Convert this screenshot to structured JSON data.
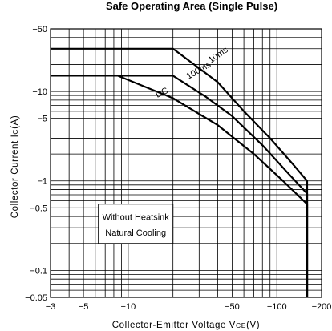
{
  "chart_data": {
    "type": "line",
    "title": "Safe Operating Area (Single Pulse)",
    "xlabel": "Collector-Emitter Voltage V",
    "xlabel_sub": "CE",
    "xlabel_unit": "(V)",
    "ylabel": "Collector Current I",
    "ylabel_sub": "C",
    "ylabel_unit": "(A)",
    "x_scale": "log",
    "y_scale": "log",
    "x_magnitude_range": [
      3,
      200
    ],
    "y_magnitude_range": [
      0.05,
      50
    ],
    "grid": true,
    "x_ticks": [
      {
        "value": 3,
        "label": "−3"
      },
      {
        "value": 5,
        "label": "−5"
      },
      {
        "value": 10,
        "label": "−10"
      },
      {
        "value": 50,
        "label": "−50"
      },
      {
        "value": 100,
        "label": "−100"
      },
      {
        "value": 200,
        "label": "−200"
      }
    ],
    "y_ticks": [
      {
        "value": 50,
        "label": "−50"
      },
      {
        "value": 10,
        "label": "−10"
      },
      {
        "value": 5,
        "label": "−5"
      },
      {
        "value": 1,
        "label": "−1"
      },
      {
        "value": 0.5,
        "label": "−0.5"
      },
      {
        "value": 0.1,
        "label": "−0.1"
      },
      {
        "value": 0.05,
        "label": "−0.05"
      }
    ],
    "series": [
      {
        "name": "10ms",
        "points": [
          [
            3,
            30
          ],
          [
            20,
            30
          ],
          [
            40,
            12.7
          ],
          [
            60,
            6
          ],
          [
            90,
            3
          ],
          [
            130,
            1.5
          ],
          [
            160,
            1.0
          ],
          [
            160,
            0.05
          ]
        ]
      },
      {
        "name": "100ms",
        "points": [
          [
            3,
            15
          ],
          [
            20,
            15
          ],
          [
            33,
            8.8
          ],
          [
            50,
            5.3
          ],
          [
            80,
            2.5
          ],
          [
            120,
            1.2
          ],
          [
            160,
            0.72
          ],
          [
            160,
            0.05
          ]
        ]
      },
      {
        "name": "DC",
        "points": [
          [
            3,
            15
          ],
          [
            8.5,
            15
          ],
          [
            20,
            8.4
          ],
          [
            40,
            4.2
          ],
          [
            70,
            2.0
          ],
          [
            110,
            1.0
          ],
          [
            160,
            0.55
          ],
          [
            160,
            0.05
          ]
        ]
      }
    ],
    "annotation_box": {
      "lines": [
        "Without Heatsink",
        "Natural Cooling"
      ],
      "x_range": [
        6.3,
        20
      ],
      "y_range": [
        0.2,
        0.55
      ]
    }
  }
}
